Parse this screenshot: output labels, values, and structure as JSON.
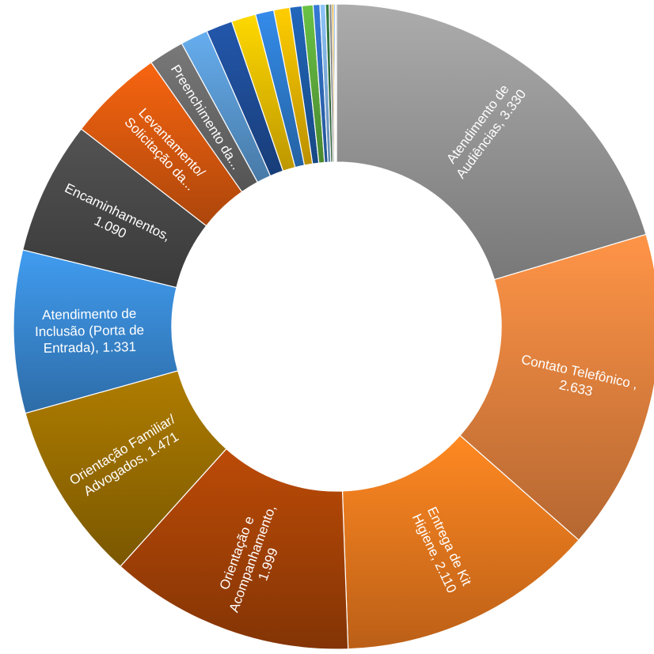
{
  "chart_data": {
    "type": "doughnut",
    "title": "",
    "legend": "none",
    "data_labels": "category-and-value-inside",
    "series": [
      {
        "name": "",
        "points": [
          {
            "label": "Atendimento de Audiências",
            "value": 3330,
            "value_text": "3.330",
            "color": "#9A9A9A",
            "label_lines": [
              "Atendimento de",
              "Audiências, 3.330"
            ]
          },
          {
            "label": "Contato Telefônico",
            "value": 2633,
            "value_text": "2.633",
            "color": "#E8843F",
            "label_lines": [
              "Contato Telefônico ,",
              "2.633"
            ]
          },
          {
            "label": "Entrega de Kit Higiene",
            "value": 2110,
            "value_text": "2.110",
            "color": "#F07A1E",
            "label_lines": [
              "Entrega de Kit",
              "Higiene, 2.110"
            ]
          },
          {
            "label": "Orientação e Acompanhamento",
            "value": 1999,
            "value_text": "1.999",
            "color": "#A84306",
            "label_lines": [
              "Orientação e",
              "Acompanhamento,",
              "1.999"
            ]
          },
          {
            "label": "Orientação Familiar/ Advogados",
            "value": 1471,
            "value_text": "1.471",
            "color": "#9C7000",
            "label_lines": [
              "Orientação Familiar/",
              "Advogados, 1.471"
            ]
          },
          {
            "label": "Atendimento de Inclusão (Porta de Entrada)",
            "value": 1331,
            "value_text": "1.331",
            "color": "#3A8BD6",
            "label_lines": [
              "Atendimento de",
              "Inclusão (Porta de",
              "Entrada), 1.331"
            ]
          },
          {
            "label": "Encaminhamentos",
            "value": 1090,
            "value_text": "1.090",
            "color": "#4A4A4A",
            "label_lines": [
              "Encaminhamentos,",
              "1.090"
            ]
          },
          {
            "label": "Levantamento/ Solicitação da...",
            "value": 780,
            "value_text": "",
            "color": "#DD5A0E",
            "label_lines": [
              "Levantamento/",
              "Solicitação da..."
            ]
          },
          {
            "label": "Preenchimento da...",
            "value": 290,
            "value_text": "",
            "color": "#6C6C6C",
            "label_lines": [
              "Preenchimento da..."
            ]
          },
          {
            "label": "",
            "value": 225,
            "value_text": "",
            "color": "#5B9BD5",
            "label_lines": []
          },
          {
            "label": "",
            "value": 215,
            "value_text": "",
            "color": "#1F4E9A",
            "label_lines": []
          },
          {
            "label": "",
            "value": 200,
            "value_text": "",
            "color": "#F2C200",
            "label_lines": []
          },
          {
            "label": "",
            "value": 150,
            "value_text": "",
            "color": "#2E7DD1",
            "label_lines": []
          },
          {
            "label": "",
            "value": 130,
            "value_text": "",
            "color": "#F0B800",
            "label_lines": []
          },
          {
            "label": "",
            "value": 100,
            "value_text": "",
            "color": "#1E5CA8",
            "label_lines": []
          },
          {
            "label": "",
            "value": 90,
            "value_text": "",
            "color": "#5FAE3E",
            "label_lines": []
          },
          {
            "label": "",
            "value": 55,
            "value_text": "",
            "color": "#2F6DC0",
            "label_lines": []
          },
          {
            "label": "",
            "value": 45,
            "value_text": "",
            "color": "#7FB0E0",
            "label_lines": []
          },
          {
            "label": "",
            "value": 30,
            "value_text": "",
            "color": "#2E6E3A",
            "label_lines": []
          },
          {
            "label": "",
            "value": 22,
            "value_text": "",
            "color": "#7A7A7A",
            "label_lines": []
          },
          {
            "label": "",
            "value": 15,
            "value_text": "",
            "color": "#C08A00",
            "label_lines": []
          },
          {
            "label": "",
            "value": 12,
            "value_text": "",
            "color": "#3F7FC8",
            "label_lines": []
          },
          {
            "label": "",
            "value": 10,
            "value_text": "",
            "color": "#999999",
            "label_lines": []
          }
        ]
      }
    ]
  }
}
